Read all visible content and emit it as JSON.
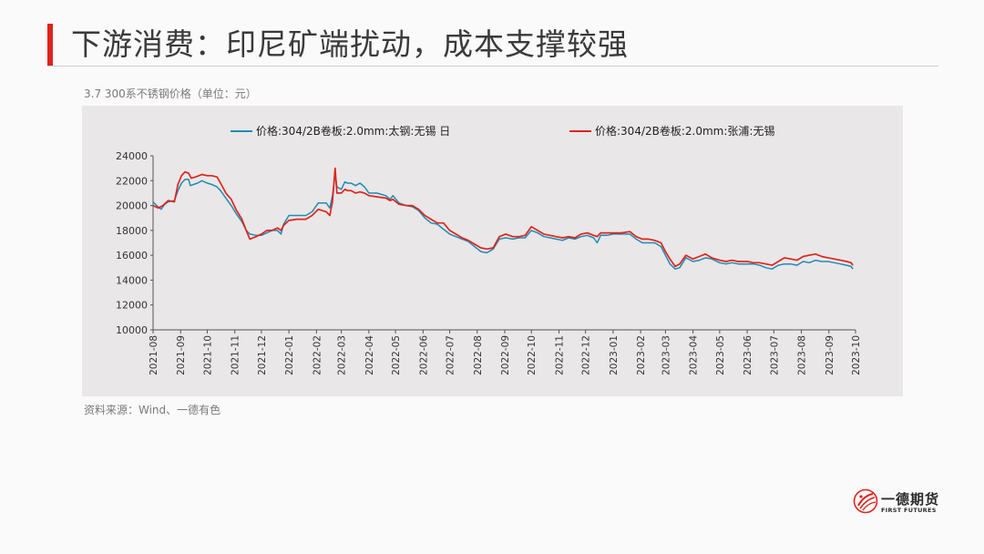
{
  "slide": {
    "title": "下游消费：印尼矿端扰动，成本支撑较强",
    "chart_caption": "3.7 300系不锈钢价格（单位：元）",
    "source_note": "资料来源：Wind、一德有色",
    "logo": {
      "name_cn": "一德期货",
      "name_en": "FIRST FUTURES",
      "icon": "first-futures-logo-icon"
    }
  },
  "chart_data": {
    "type": "line",
    "title": "",
    "xlabel": "",
    "ylabel": "",
    "ylim": [
      10000,
      24000
    ],
    "yticks": [
      10000,
      12000,
      14000,
      16000,
      18000,
      20000,
      22000,
      24000
    ],
    "xlim": [
      "2021-08",
      "2023-10"
    ],
    "xticks": [
      "2021-08",
      "2021-09",
      "2021-10",
      "2021-11",
      "2021-12",
      "2022-01",
      "2022-02",
      "2022-03",
      "2022-04",
      "2022-05",
      "2022-06",
      "2022-07",
      "2022-08",
      "2022-09",
      "2022-10",
      "2022-11",
      "2022-12",
      "2023-01",
      "2023-02",
      "2023-03",
      "2023-04",
      "2023-05",
      "2023-06",
      "2023-07",
      "2023-08",
      "2023-09",
      "2023-10"
    ],
    "grid": false,
    "legend_position": "top",
    "series": [
      {
        "name": "价格:304/2B卷板:2.0mm:太钢:无锡 日",
        "color": "#1e8bb5",
        "points": [
          [
            "2021-08-01",
            20300
          ],
          [
            "2021-08-05",
            20000
          ],
          [
            "2021-08-10",
            19700
          ],
          [
            "2021-08-14",
            20100
          ],
          [
            "2021-08-18",
            20300
          ],
          [
            "2021-08-25",
            20400
          ],
          [
            "2021-08-29",
            21200
          ],
          [
            "2021-09-02",
            21800
          ],
          [
            "2021-09-06",
            22100
          ],
          [
            "2021-09-10",
            22100
          ],
          [
            "2021-09-12",
            21600
          ],
          [
            "2021-09-20",
            21800
          ],
          [
            "2021-09-25",
            22000
          ],
          [
            "2021-10-01",
            21800
          ],
          [
            "2021-10-06",
            21700
          ],
          [
            "2021-10-12",
            21500
          ],
          [
            "2021-10-16",
            21200
          ],
          [
            "2021-10-22",
            20600
          ],
          [
            "2021-10-28",
            20000
          ],
          [
            "2021-11-03",
            19300
          ],
          [
            "2021-11-09",
            18700
          ],
          [
            "2021-11-14",
            18000
          ],
          [
            "2021-11-18",
            17700
          ],
          [
            "2021-11-25",
            17600
          ],
          [
            "2021-12-01",
            17600
          ],
          [
            "2021-12-07",
            17800
          ],
          [
            "2021-12-13",
            18000
          ],
          [
            "2021-12-19",
            18000
          ],
          [
            "2021-12-23",
            17700
          ],
          [
            "2021-12-26",
            18500
          ],
          [
            "2022-01-01",
            19200
          ],
          [
            "2022-01-10",
            19200
          ],
          [
            "2022-01-20",
            19200
          ],
          [
            "2022-01-27",
            19500
          ],
          [
            "2022-02-03",
            20200
          ],
          [
            "2022-02-12",
            20200
          ],
          [
            "2022-02-16",
            19800
          ],
          [
            "2022-02-19",
            20800
          ],
          [
            "2022-02-22",
            22500
          ],
          [
            "2022-02-24",
            21500
          ],
          [
            "2022-03-01",
            21300
          ],
          [
            "2022-03-05",
            21900
          ],
          [
            "2022-03-08",
            21800
          ],
          [
            "2022-03-12",
            21800
          ],
          [
            "2022-03-17",
            21600
          ],
          [
            "2022-03-22",
            21800
          ],
          [
            "2022-03-27",
            21500
          ],
          [
            "2022-04-01",
            21000
          ],
          [
            "2022-04-10",
            21000
          ],
          [
            "2022-04-20",
            20800
          ],
          [
            "2022-04-25",
            20500
          ],
          [
            "2022-04-28",
            20800
          ],
          [
            "2022-05-05",
            20200
          ],
          [
            "2022-05-13",
            20000
          ],
          [
            "2022-05-20",
            19900
          ],
          [
            "2022-05-27",
            19600
          ],
          [
            "2022-06-03",
            19000
          ],
          [
            "2022-06-10",
            18600
          ],
          [
            "2022-06-17",
            18500
          ],
          [
            "2022-06-24",
            18100
          ],
          [
            "2022-07-01",
            17700
          ],
          [
            "2022-07-08",
            17500
          ],
          [
            "2022-07-15",
            17300
          ],
          [
            "2022-07-22",
            17100
          ],
          [
            "2022-07-29",
            16700
          ],
          [
            "2022-08-05",
            16300
          ],
          [
            "2022-08-12",
            16200
          ],
          [
            "2022-08-19",
            16500
          ],
          [
            "2022-08-26",
            17300
          ],
          [
            "2022-09-02",
            17400
          ],
          [
            "2022-09-10",
            17300
          ],
          [
            "2022-09-17",
            17400
          ],
          [
            "2022-09-24",
            17400
          ],
          [
            "2022-10-01",
            18000
          ],
          [
            "2022-10-08",
            17800
          ],
          [
            "2022-10-15",
            17500
          ],
          [
            "2022-10-22",
            17400
          ],
          [
            "2022-10-29",
            17300
          ],
          [
            "2022-11-05",
            17200
          ],
          [
            "2022-11-12",
            17400
          ],
          [
            "2022-11-19",
            17300
          ],
          [
            "2022-11-26",
            17500
          ],
          [
            "2022-12-03",
            17600
          ],
          [
            "2022-12-10",
            17400
          ],
          [
            "2022-12-14",
            17000
          ],
          [
            "2022-12-18",
            17600
          ],
          [
            "2022-12-25",
            17600
          ],
          [
            "2023-01-01",
            17700
          ],
          [
            "2023-01-10",
            17700
          ],
          [
            "2023-01-20",
            17700
          ],
          [
            "2023-01-27",
            17300
          ],
          [
            "2023-02-03",
            17000
          ],
          [
            "2023-02-10",
            17000
          ],
          [
            "2023-02-17",
            17000
          ],
          [
            "2023-02-24",
            16700
          ],
          [
            "2023-03-01",
            16000
          ],
          [
            "2023-03-06",
            15300
          ],
          [
            "2023-03-12",
            14900
          ],
          [
            "2023-03-17",
            15000
          ],
          [
            "2023-03-24",
            15800
          ],
          [
            "2023-04-01",
            15500
          ],
          [
            "2023-04-08",
            15600
          ],
          [
            "2023-04-15",
            15800
          ],
          [
            "2023-04-22",
            15700
          ],
          [
            "2023-05-01",
            15400
          ],
          [
            "2023-05-08",
            15300
          ],
          [
            "2023-05-15",
            15400
          ],
          [
            "2023-05-22",
            15300
          ],
          [
            "2023-06-01",
            15300
          ],
          [
            "2023-06-08",
            15300
          ],
          [
            "2023-06-15",
            15200
          ],
          [
            "2023-06-22",
            15000
          ],
          [
            "2023-06-29",
            14900
          ],
          [
            "2023-07-06",
            15200
          ],
          [
            "2023-07-13",
            15300
          ],
          [
            "2023-07-20",
            15300
          ],
          [
            "2023-07-27",
            15200
          ],
          [
            "2023-08-03",
            15500
          ],
          [
            "2023-08-10",
            15400
          ],
          [
            "2023-08-17",
            15600
          ],
          [
            "2023-08-24",
            15500
          ],
          [
            "2023-08-31",
            15500
          ],
          [
            "2023-09-07",
            15400
          ],
          [
            "2023-09-14",
            15300
          ],
          [
            "2023-09-21",
            15200
          ],
          [
            "2023-09-26",
            15100
          ],
          [
            "2023-09-28",
            14900
          ]
        ]
      },
      {
        "name": "价格:304/2B卷板:2.0mm:张浦:无锡",
        "color": "#e0231c",
        "points": [
          [
            "2021-08-01",
            20000
          ],
          [
            "2021-08-07",
            19800
          ],
          [
            "2021-08-12",
            20000
          ],
          [
            "2021-08-18",
            20400
          ],
          [
            "2021-08-25",
            20300
          ],
          [
            "2021-08-29",
            21700
          ],
          [
            "2021-09-02",
            22400
          ],
          [
            "2021-09-06",
            22700
          ],
          [
            "2021-09-10",
            22600
          ],
          [
            "2021-09-13",
            22200
          ],
          [
            "2021-09-18",
            22300
          ],
          [
            "2021-09-25",
            22500
          ],
          [
            "2021-10-01",
            22400
          ],
          [
            "2021-10-06",
            22400
          ],
          [
            "2021-10-12",
            22300
          ],
          [
            "2021-10-16",
            21800
          ],
          [
            "2021-10-22",
            21000
          ],
          [
            "2021-10-28",
            20500
          ],
          [
            "2021-11-03",
            19600
          ],
          [
            "2021-11-09",
            18900
          ],
          [
            "2021-11-14",
            18000
          ],
          [
            "2021-11-18",
            17300
          ],
          [
            "2021-11-25",
            17500
          ],
          [
            "2021-12-01",
            17700
          ],
          [
            "2021-12-07",
            18000
          ],
          [
            "2021-12-13",
            18000
          ],
          [
            "2021-12-19",
            18200
          ],
          [
            "2021-12-23",
            18000
          ],
          [
            "2021-12-26",
            18400
          ],
          [
            "2022-01-01",
            18800
          ],
          [
            "2022-01-10",
            18900
          ],
          [
            "2022-01-20",
            18900
          ],
          [
            "2022-01-27",
            19200
          ],
          [
            "2022-02-03",
            19700
          ],
          [
            "2022-02-12",
            19500
          ],
          [
            "2022-02-16",
            19200
          ],
          [
            "2022-02-19",
            20300
          ],
          [
            "2022-02-22",
            23000
          ],
          [
            "2022-02-24",
            21000
          ],
          [
            "2022-03-01",
            21000
          ],
          [
            "2022-03-05",
            21300
          ],
          [
            "2022-03-08",
            21200
          ],
          [
            "2022-03-12",
            21200
          ],
          [
            "2022-03-17",
            21000
          ],
          [
            "2022-03-22",
            21100
          ],
          [
            "2022-03-27",
            21000
          ],
          [
            "2022-04-01",
            20800
          ],
          [
            "2022-04-10",
            20700
          ],
          [
            "2022-04-20",
            20600
          ],
          [
            "2022-04-25",
            20400
          ],
          [
            "2022-04-28",
            20500
          ],
          [
            "2022-05-05",
            20100
          ],
          [
            "2022-05-13",
            20000
          ],
          [
            "2022-05-20",
            20000
          ],
          [
            "2022-05-27",
            19700
          ],
          [
            "2022-06-03",
            19200
          ],
          [
            "2022-06-10",
            18900
          ],
          [
            "2022-06-17",
            18600
          ],
          [
            "2022-06-24",
            18600
          ],
          [
            "2022-07-01",
            18000
          ],
          [
            "2022-07-08",
            17700
          ],
          [
            "2022-07-15",
            17400
          ],
          [
            "2022-07-22",
            17200
          ],
          [
            "2022-07-29",
            16900
          ],
          [
            "2022-08-05",
            16600
          ],
          [
            "2022-08-12",
            16500
          ],
          [
            "2022-08-19",
            16600
          ],
          [
            "2022-08-26",
            17500
          ],
          [
            "2022-09-02",
            17700
          ],
          [
            "2022-09-10",
            17500
          ],
          [
            "2022-09-17",
            17500
          ],
          [
            "2022-09-24",
            17600
          ],
          [
            "2022-10-01",
            18300
          ],
          [
            "2022-10-08",
            18000
          ],
          [
            "2022-10-15",
            17700
          ],
          [
            "2022-10-22",
            17600
          ],
          [
            "2022-10-29",
            17500
          ],
          [
            "2022-11-05",
            17400
          ],
          [
            "2022-11-12",
            17500
          ],
          [
            "2022-11-19",
            17400
          ],
          [
            "2022-11-26",
            17700
          ],
          [
            "2022-12-03",
            17800
          ],
          [
            "2022-12-10",
            17600
          ],
          [
            "2022-12-14",
            17500
          ],
          [
            "2022-12-18",
            17800
          ],
          [
            "2022-12-25",
            17800
          ],
          [
            "2023-01-01",
            17800
          ],
          [
            "2023-01-10",
            17800
          ],
          [
            "2023-01-20",
            17900
          ],
          [
            "2023-01-27",
            17500
          ],
          [
            "2023-02-03",
            17300
          ],
          [
            "2023-02-10",
            17300
          ],
          [
            "2023-02-17",
            17200
          ],
          [
            "2023-02-24",
            17000
          ],
          [
            "2023-03-01",
            16300
          ],
          [
            "2023-03-06",
            15700
          ],
          [
            "2023-03-12",
            15100
          ],
          [
            "2023-03-17",
            15300
          ],
          [
            "2023-03-24",
            16000
          ],
          [
            "2023-04-01",
            15700
          ],
          [
            "2023-04-08",
            15900
          ],
          [
            "2023-04-15",
            16100
          ],
          [
            "2023-04-22",
            15800
          ],
          [
            "2023-05-01",
            15600
          ],
          [
            "2023-05-08",
            15500
          ],
          [
            "2023-05-15",
            15600
          ],
          [
            "2023-05-22",
            15500
          ],
          [
            "2023-06-01",
            15500
          ],
          [
            "2023-06-08",
            15400
          ],
          [
            "2023-06-15",
            15400
          ],
          [
            "2023-06-22",
            15300
          ],
          [
            "2023-06-29",
            15200
          ],
          [
            "2023-07-06",
            15500
          ],
          [
            "2023-07-13",
            15800
          ],
          [
            "2023-07-20",
            15700
          ],
          [
            "2023-07-27",
            15600
          ],
          [
            "2023-08-03",
            15900
          ],
          [
            "2023-08-10",
            16000
          ],
          [
            "2023-08-17",
            16100
          ],
          [
            "2023-08-24",
            15900
          ],
          [
            "2023-08-31",
            15800
          ],
          [
            "2023-09-07",
            15700
          ],
          [
            "2023-09-14",
            15600
          ],
          [
            "2023-09-21",
            15500
          ],
          [
            "2023-09-26",
            15400
          ],
          [
            "2023-09-28",
            15200
          ]
        ]
      }
    ]
  }
}
